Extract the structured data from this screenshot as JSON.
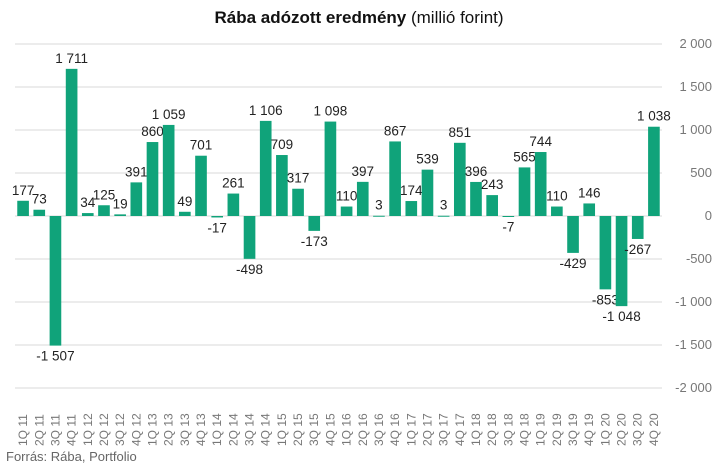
{
  "title_bold": "Rába adózott eredmény",
  "title_rest": "(millió forint)",
  "source": "Forrás: Rába, Portfolio",
  "colors": {
    "bar": "#10a37a",
    "grid": "#d9d9d9"
  },
  "chart_data": {
    "type": "bar",
    "title": "Rába adózott eredmény (millió forint)",
    "categories": [
      "1Q 11",
      "2Q 11",
      "3Q 11",
      "4Q 11",
      "1Q 12",
      "2Q 12",
      "3Q 12",
      "4Q 12",
      "1Q 13",
      "2Q 13",
      "3Q 13",
      "4Q 13",
      "1Q 14",
      "2Q 14",
      "3Q 14",
      "4Q 14",
      "1Q 15",
      "2Q 15",
      "3Q 15",
      "4Q 15",
      "1Q 16",
      "2Q 16",
      "3Q 16",
      "4Q 16",
      "1Q 17",
      "2Q 17",
      "3Q 17",
      "4Q 17",
      "1Q 18",
      "2Q 18",
      "3Q 18",
      "4Q 18",
      "1Q 19",
      "2Q 19",
      "3Q 19",
      "4Q 19",
      "1Q 20",
      "2Q 20",
      "3Q 20",
      "4Q 20"
    ],
    "values": [
      177,
      73,
      -1507,
      1711,
      34,
      125,
      19,
      391,
      860,
      1059,
      49,
      701,
      -17,
      261,
      -498,
      1106,
      709,
      317,
      -173,
      1098,
      110,
      397,
      3,
      867,
      174,
      539,
      3,
      851,
      396,
      243,
      -7,
      565,
      744,
      110,
      -429,
      146,
      -853,
      -1048,
      -267,
      1038
    ],
    "data_labels": [
      "177",
      "73",
      "-1 507",
      "1 711",
      "34",
      "125",
      "19",
      "391",
      "860",
      "1 059",
      "49",
      "701",
      "-17",
      "261",
      "-498",
      "1 106",
      "709",
      "317",
      "-173",
      "1 098",
      "110",
      "397",
      "3",
      "867",
      "174",
      "539",
      "3",
      "851",
      "396",
      "243",
      "-7",
      "565",
      "744",
      "110",
      "-429",
      "146",
      "-853",
      "-1 048",
      "-267",
      "1 038"
    ],
    "yticks": [
      2000,
      1500,
      1000,
      500,
      0,
      -500,
      -1000,
      -1500,
      -2000
    ],
    "ytick_labels": [
      "2 000",
      "1 500",
      "1 000",
      "500",
      "0",
      "-500",
      "-1 000",
      "-1 500",
      "-2 000"
    ],
    "ylim": [
      -2000,
      2000
    ],
    "y_axis_side": "right",
    "grid": true,
    "legend": "none"
  }
}
